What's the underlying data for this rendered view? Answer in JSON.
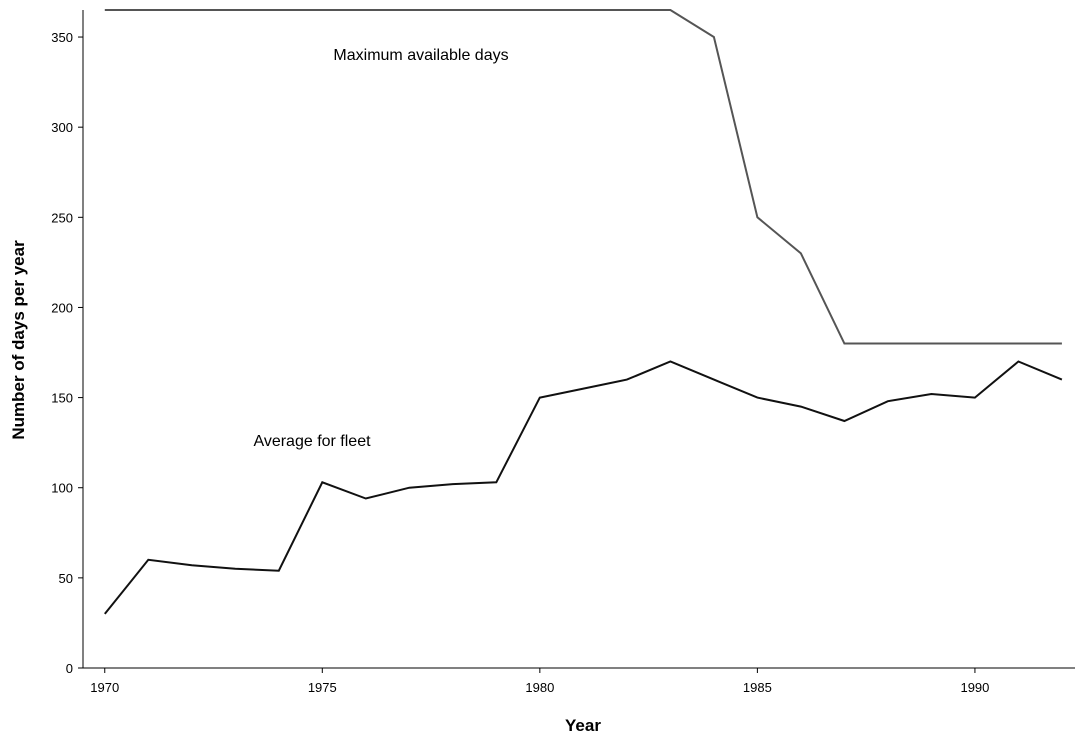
{
  "chart_data": {
    "type": "line",
    "title": "",
    "xlabel": "Year",
    "ylabel": "Number of days per year",
    "xlim": [
      1969.5,
      1992.3
    ],
    "ylim": [
      0,
      365
    ],
    "x_ticks": [
      1970,
      1975,
      1980,
      1985,
      1990
    ],
    "y_ticks": [
      0,
      50,
      100,
      150,
      200,
      250,
      300,
      350
    ],
    "grid": false,
    "legend": "none",
    "series": [
      {
        "name": "Maximum available days",
        "color": "#555555",
        "x": [
          1970,
          1983,
          1984,
          1985,
          1986,
          1987,
          1992
        ],
        "values": [
          365,
          365,
          350,
          250,
          230,
          180,
          180
        ]
      },
      {
        "name": "Average for fleet",
        "color": "#111111",
        "x": [
          1970,
          1971,
          1972,
          1973,
          1974,
          1975,
          1976,
          1977,
          1978,
          1979,
          1980,
          1981,
          1982,
          1983,
          1984,
          1985,
          1986,
          1987,
          1988,
          1989,
          1990,
          1991,
          1992
        ],
        "values": [
          30,
          60,
          57,
          55,
          54,
          103,
          94,
          100,
          102,
          103,
          150,
          155,
          160,
          170,
          160,
          150,
          145,
          137,
          148,
          152,
          150,
          170,
          160
        ]
      }
    ]
  }
}
